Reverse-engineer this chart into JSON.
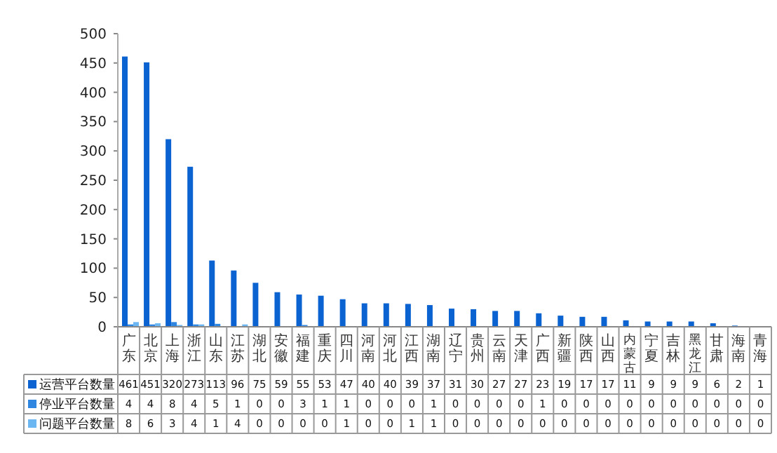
{
  "chart_data": {
    "type": "bar",
    "categories": [
      "广东",
      "北京",
      "上海",
      "浙江",
      "山东",
      "江苏",
      "湖北",
      "安徽",
      "福建",
      "重庆",
      "四川",
      "河南",
      "河北",
      "江西",
      "湖南",
      "辽宁",
      "贵州",
      "云南",
      "天津",
      "广西",
      "新疆",
      "陕西",
      "山西",
      "内蒙古",
      "宁夏",
      "吉林",
      "黑龙江",
      "甘肃",
      "海南",
      "青海"
    ],
    "series": [
      {
        "name": "运营平台数量",
        "color": "#0b63d1",
        "values": [
          461,
          451,
          320,
          273,
          113,
          96,
          75,
          59,
          55,
          53,
          47,
          40,
          40,
          39,
          37,
          31,
          30,
          27,
          27,
          23,
          19,
          17,
          17,
          11,
          9,
          9,
          9,
          6,
          2,
          1
        ]
      },
      {
        "name": "停业平台数量",
        "color": "#2f86e0",
        "values": [
          4,
          4,
          8,
          4,
          5,
          1,
          0,
          0,
          3,
          1,
          1,
          0,
          0,
          0,
          1,
          0,
          0,
          0,
          0,
          1,
          0,
          0,
          0,
          0,
          0,
          0,
          0,
          0,
          0,
          0
        ]
      },
      {
        "name": "问题平台数量",
        "color": "#6cb6f2",
        "values": [
          8,
          6,
          3,
          4,
          1,
          4,
          0,
          0,
          0,
          0,
          1,
          0,
          0,
          1,
          1,
          0,
          0,
          0,
          0,
          0,
          0,
          0,
          0,
          0,
          0,
          0,
          0,
          0,
          0,
          0
        ]
      }
    ],
    "ylim": [
      0,
      500
    ],
    "yticks": [
      0,
      50,
      100,
      150,
      200,
      250,
      300,
      350,
      400,
      450,
      500
    ],
    "grid": false,
    "legend": "bottom",
    "data_labels": true
  }
}
